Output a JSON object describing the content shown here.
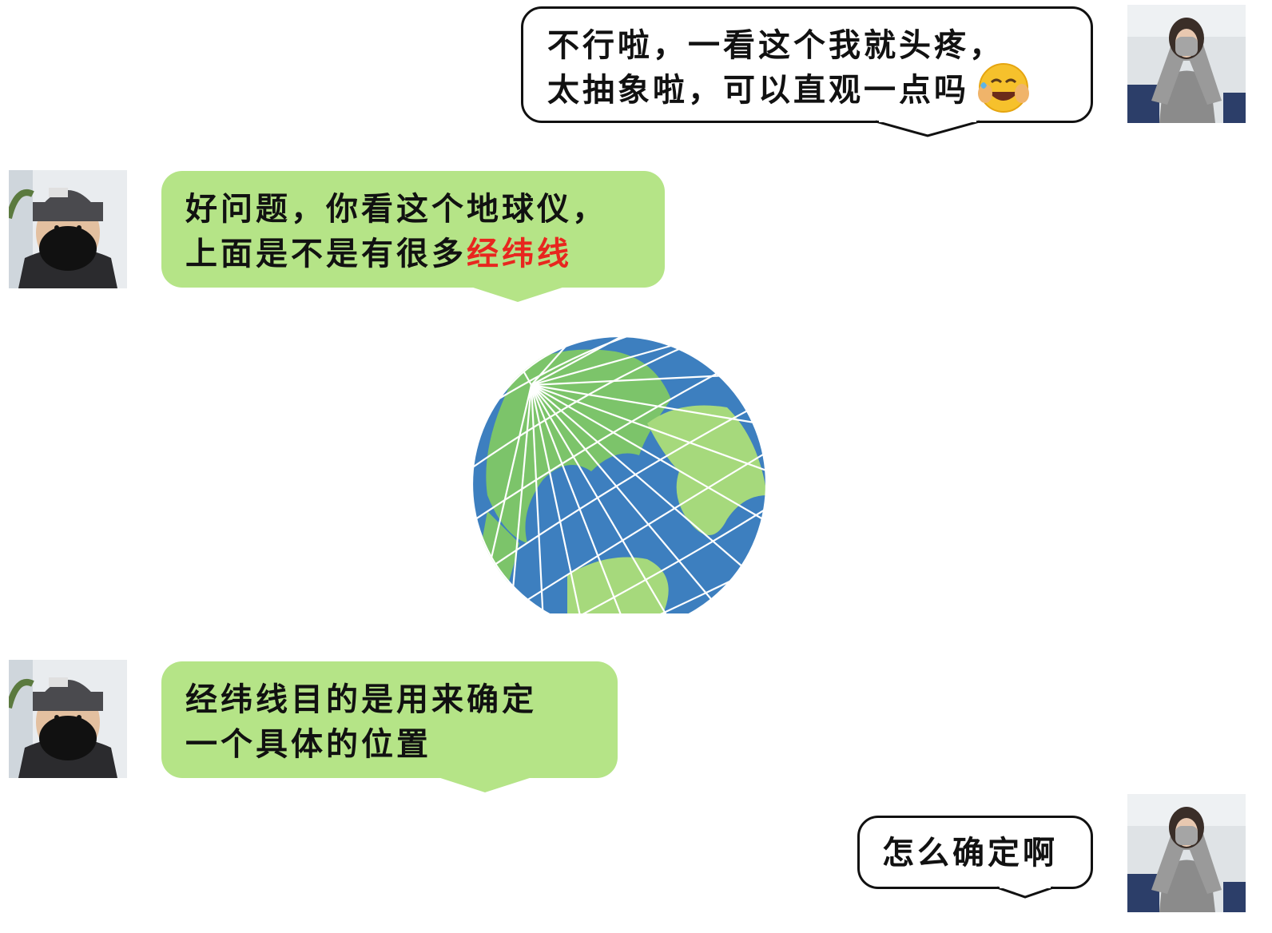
{
  "messages": [
    {
      "side": "right",
      "lines": [
        "不行啦，一看这个我就头疼，",
        "太抽象啦，可以直观一点吗"
      ],
      "emoji": "face-with-tears-of-joy"
    },
    {
      "side": "left",
      "lines": [
        "好问题，你看这个地球仪，",
        "上面是不是有很多"
      ],
      "highlight": "经纬线"
    },
    {
      "side": "left",
      "lines": [
        "经纬线目的是用来确定",
        "一个具体的位置"
      ]
    },
    {
      "side": "right",
      "lines": [
        "怎么确定啊"
      ]
    }
  ],
  "colors": {
    "left_bubble": "#b5e487",
    "right_bubble_border": "#111111",
    "highlight": "#e8261f",
    "ocean": "#3d7fbf",
    "land": "#7cc46a"
  },
  "image": {
    "globe_icon": "globe-icon"
  }
}
